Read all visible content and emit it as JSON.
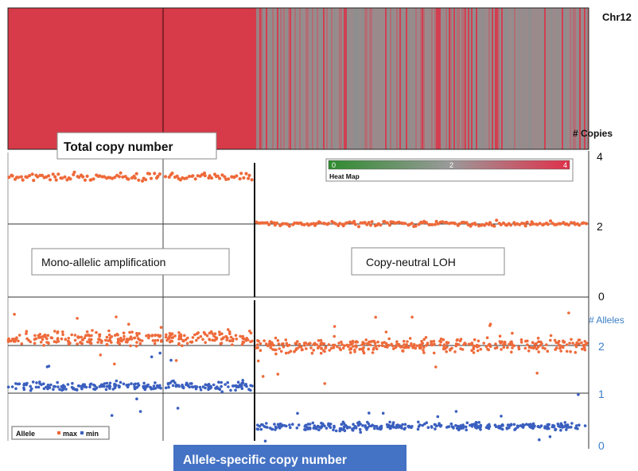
{
  "chart_data": [
    {
      "type": "heatmap",
      "chromosome_label": "Chr12",
      "colorscale": {
        "title": "Heat Map",
        "ticks": [
          "0",
          "2",
          "4"
        ],
        "colors": [
          "#2e8b2e",
          "#9a9a9a",
          "#e0304a"
        ]
      },
      "segments": [
        {
          "region": "left",
          "copies": 4
        },
        {
          "region": "right",
          "copies": 2
        }
      ]
    },
    {
      "type": "scatter",
      "title": "Total copy number",
      "ylabel": "# Copies",
      "yticks": [
        "4",
        "2",
        "0"
      ],
      "ylim": [
        0,
        4
      ],
      "segments": [
        {
          "name": "left-1",
          "mean": 3.45,
          "spread": 0.12
        },
        {
          "name": "left-2",
          "mean": 3.45,
          "spread": 0.12
        },
        {
          "name": "right",
          "mean": 2.1,
          "spread": 0.08
        }
      ],
      "annotations": [
        "Mono-allelic amplification",
        "Copy-neutral LOH"
      ]
    },
    {
      "type": "scatter",
      "title": "Allele-specific copy number",
      "ylabel": "# Alleles",
      "yticks": [
        "2",
        "1",
        "0"
      ],
      "ylim": [
        0,
        2.6
      ],
      "legend": {
        "title": "Allele",
        "entries": [
          "max",
          "min"
        ],
        "colors": [
          "#ee6a3a",
          "#3a5fbf"
        ],
        "placement": "bottom-left"
      },
      "series": [
        {
          "name": "max",
          "segments": [
            {
              "mean": 2.15
            },
            {
              "mean": 2.15
            },
            {
              "mean": 2.0
            }
          ]
        },
        {
          "name": "min",
          "segments": [
            {
              "mean": 1.15
            },
            {
              "mean": 1.15
            },
            {
              "mean": 0.3
            }
          ]
        }
      ]
    }
  ]
}
